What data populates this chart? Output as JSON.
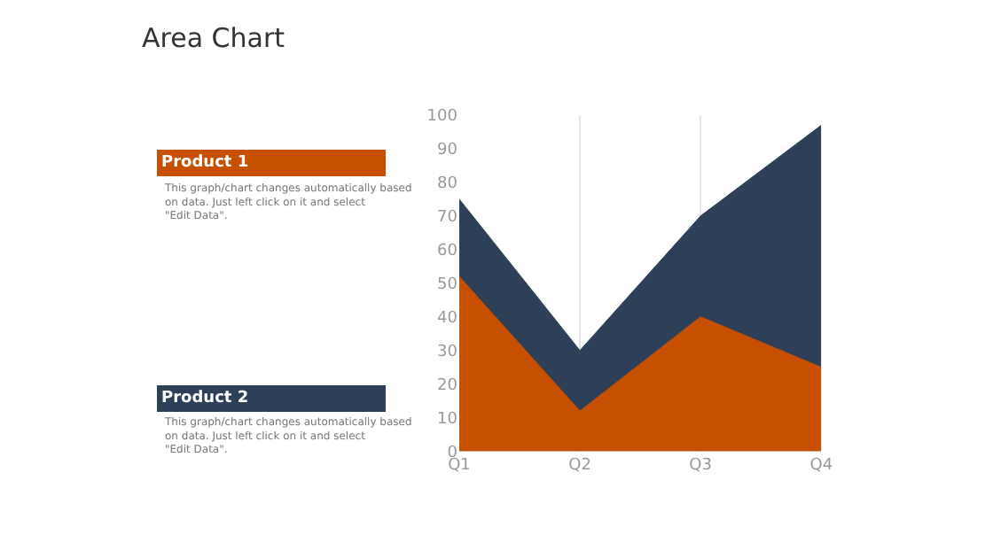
{
  "chart_data": {
    "type": "area",
    "title": "Area Chart",
    "categories": [
      "Q1",
      "Q2",
      "Q3",
      "Q4"
    ],
    "series": [
      {
        "name": "Product 2",
        "color": "#2e4057",
        "values": [
          75,
          30,
          70,
          97
        ]
      },
      {
        "name": "Product 1",
        "color": "#c75000",
        "values": [
          52,
          12,
          40,
          25
        ]
      }
    ],
    "annotations": [
      "This graph/chart changes automatically based on data. Just left click on it and select \"Edit Data\".",
      "This graph/chart changes automatically based on data. Just left click on it and select \"Edit Data\"."
    ],
    "ylim": [
      0,
      100
    ],
    "yticks": [
      0,
      10,
      20,
      30,
      40,
      50,
      60,
      70,
      80,
      90,
      100
    ],
    "grid": "x",
    "legend": "left"
  }
}
